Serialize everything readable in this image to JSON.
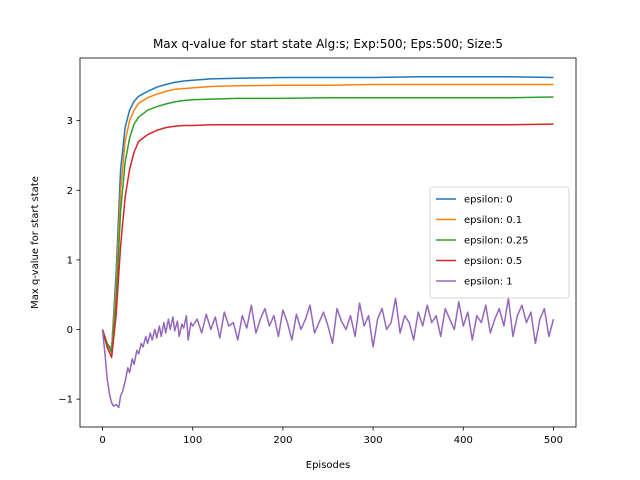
{
  "chart_data": {
    "type": "line",
    "title": "Max q-value for start state Alg:s; Exp:500; Eps:500; Size:5",
    "xlabel": "Episodes",
    "ylabel": "Max q-value for start state",
    "xlim": [
      -25,
      525
    ],
    "ylim": [
      -1.4,
      3.9
    ],
    "xticks": [
      0,
      100,
      200,
      300,
      400,
      500
    ],
    "yticks": [
      -1,
      0,
      1,
      2,
      3
    ],
    "legend_position": "center-right",
    "grid": false,
    "series": [
      {
        "name": "epsilon: 0",
        "color": "#1f77b4",
        "x": [
          0,
          5,
          10,
          15,
          20,
          25,
          30,
          35,
          40,
          50,
          60,
          70,
          80,
          90,
          100,
          120,
          150,
          200,
          250,
          300,
          350,
          400,
          450,
          500
        ],
        "y": [
          0,
          -0.2,
          -0.28,
          0.8,
          2.3,
          2.9,
          3.15,
          3.28,
          3.35,
          3.42,
          3.48,
          3.52,
          3.55,
          3.57,
          3.58,
          3.6,
          3.61,
          3.62,
          3.62,
          3.62,
          3.63,
          3.63,
          3.63,
          3.62
        ]
      },
      {
        "name": "epsilon: 0.1",
        "color": "#ff7f0e",
        "x": [
          0,
          5,
          10,
          15,
          20,
          25,
          30,
          35,
          40,
          50,
          60,
          70,
          80,
          90,
          100,
          120,
          150,
          200,
          250,
          300,
          350,
          400,
          450,
          500
        ],
        "y": [
          0,
          -0.2,
          -0.3,
          0.6,
          2.0,
          2.7,
          3.0,
          3.15,
          3.25,
          3.33,
          3.38,
          3.42,
          3.45,
          3.46,
          3.47,
          3.49,
          3.5,
          3.51,
          3.51,
          3.52,
          3.52,
          3.52,
          3.52,
          3.52
        ]
      },
      {
        "name": "epsilon: 0.25",
        "color": "#2ca02c",
        "x": [
          0,
          5,
          10,
          15,
          20,
          25,
          30,
          35,
          40,
          50,
          60,
          70,
          80,
          90,
          100,
          120,
          150,
          200,
          250,
          300,
          350,
          400,
          450,
          500
        ],
        "y": [
          0,
          -0.2,
          -0.33,
          0.4,
          1.7,
          2.4,
          2.75,
          2.95,
          3.05,
          3.15,
          3.2,
          3.24,
          3.27,
          3.29,
          3.3,
          3.31,
          3.32,
          3.32,
          3.33,
          3.33,
          3.33,
          3.33,
          3.33,
          3.34
        ]
      },
      {
        "name": "epsilon: 0.5",
        "color": "#d62728",
        "x": [
          0,
          5,
          10,
          15,
          20,
          25,
          30,
          35,
          40,
          50,
          60,
          70,
          80,
          90,
          100,
          120,
          150,
          200,
          250,
          300,
          350,
          400,
          450,
          500
        ],
        "y": [
          0,
          -0.25,
          -0.4,
          0.2,
          1.2,
          1.9,
          2.3,
          2.55,
          2.7,
          2.8,
          2.86,
          2.9,
          2.92,
          2.93,
          2.93,
          2.94,
          2.94,
          2.94,
          2.94,
          2.94,
          2.94,
          2.94,
          2.94,
          2.95
        ]
      },
      {
        "name": "epsilon: 1",
        "color": "#9467bd",
        "x": [
          0,
          3,
          5,
          8,
          10,
          12,
          15,
          18,
          20,
          22,
          25,
          28,
          30,
          33,
          35,
          38,
          40,
          43,
          45,
          48,
          50,
          53,
          55,
          58,
          60,
          63,
          65,
          68,
          70,
          73,
          75,
          78,
          80,
          83,
          85,
          88,
          90,
          93,
          95,
          98,
          100,
          105,
          110,
          115,
          120,
          125,
          130,
          135,
          140,
          145,
          150,
          155,
          160,
          165,
          170,
          175,
          180,
          185,
          190,
          195,
          200,
          205,
          210,
          215,
          220,
          225,
          230,
          235,
          240,
          245,
          250,
          255,
          260,
          265,
          270,
          275,
          280,
          285,
          290,
          295,
          300,
          305,
          310,
          315,
          320,
          325,
          330,
          335,
          340,
          345,
          350,
          355,
          360,
          365,
          370,
          375,
          380,
          385,
          390,
          395,
          400,
          405,
          410,
          415,
          420,
          425,
          430,
          435,
          440,
          445,
          450,
          455,
          460,
          465,
          470,
          475,
          480,
          485,
          490,
          495,
          500
        ],
        "y": [
          0,
          -0.4,
          -0.7,
          -0.95,
          -1.05,
          -1.1,
          -1.08,
          -1.12,
          -0.95,
          -0.9,
          -0.75,
          -0.55,
          -0.62,
          -0.42,
          -0.5,
          -0.3,
          -0.35,
          -0.2,
          -0.25,
          -0.1,
          -0.2,
          -0.05,
          -0.15,
          0.0,
          -0.12,
          0.05,
          -0.1,
          0.1,
          -0.05,
          0.15,
          0.0,
          0.18,
          -0.02,
          0.12,
          -0.1,
          0.08,
          0.02,
          0.2,
          -0.15,
          0.1,
          0.05,
          0.15,
          -0.05,
          0.22,
          0.0,
          0.18,
          -0.12,
          0.25,
          0.05,
          0.1,
          -0.15,
          0.2,
          0.02,
          0.35,
          -0.05,
          0.15,
          0.3,
          0.05,
          0.2,
          -0.1,
          0.28,
          0.1,
          -0.15,
          0.22,
          0.0,
          0.15,
          0.35,
          -0.05,
          0.1,
          0.25,
          0.05,
          -0.2,
          0.3,
          0.12,
          0.0,
          0.2,
          -0.1,
          0.38,
          0.05,
          0.2,
          -0.25,
          0.15,
          0.3,
          0.0,
          0.1,
          0.45,
          -0.05,
          0.2,
          0.1,
          -0.15,
          0.25,
          0.05,
          0.35,
          0.1,
          0.2,
          -0.1,
          0.3,
          0.15,
          0.0,
          0.4,
          0.05,
          0.25,
          -0.15,
          0.2,
          0.1,
          0.35,
          -0.05,
          0.15,
          0.3,
          0.05,
          0.45,
          -0.1,
          0.2,
          0.35,
          0.1,
          0.25,
          -0.2,
          0.15,
          0.3,
          -0.1,
          0.15
        ]
      }
    ]
  }
}
